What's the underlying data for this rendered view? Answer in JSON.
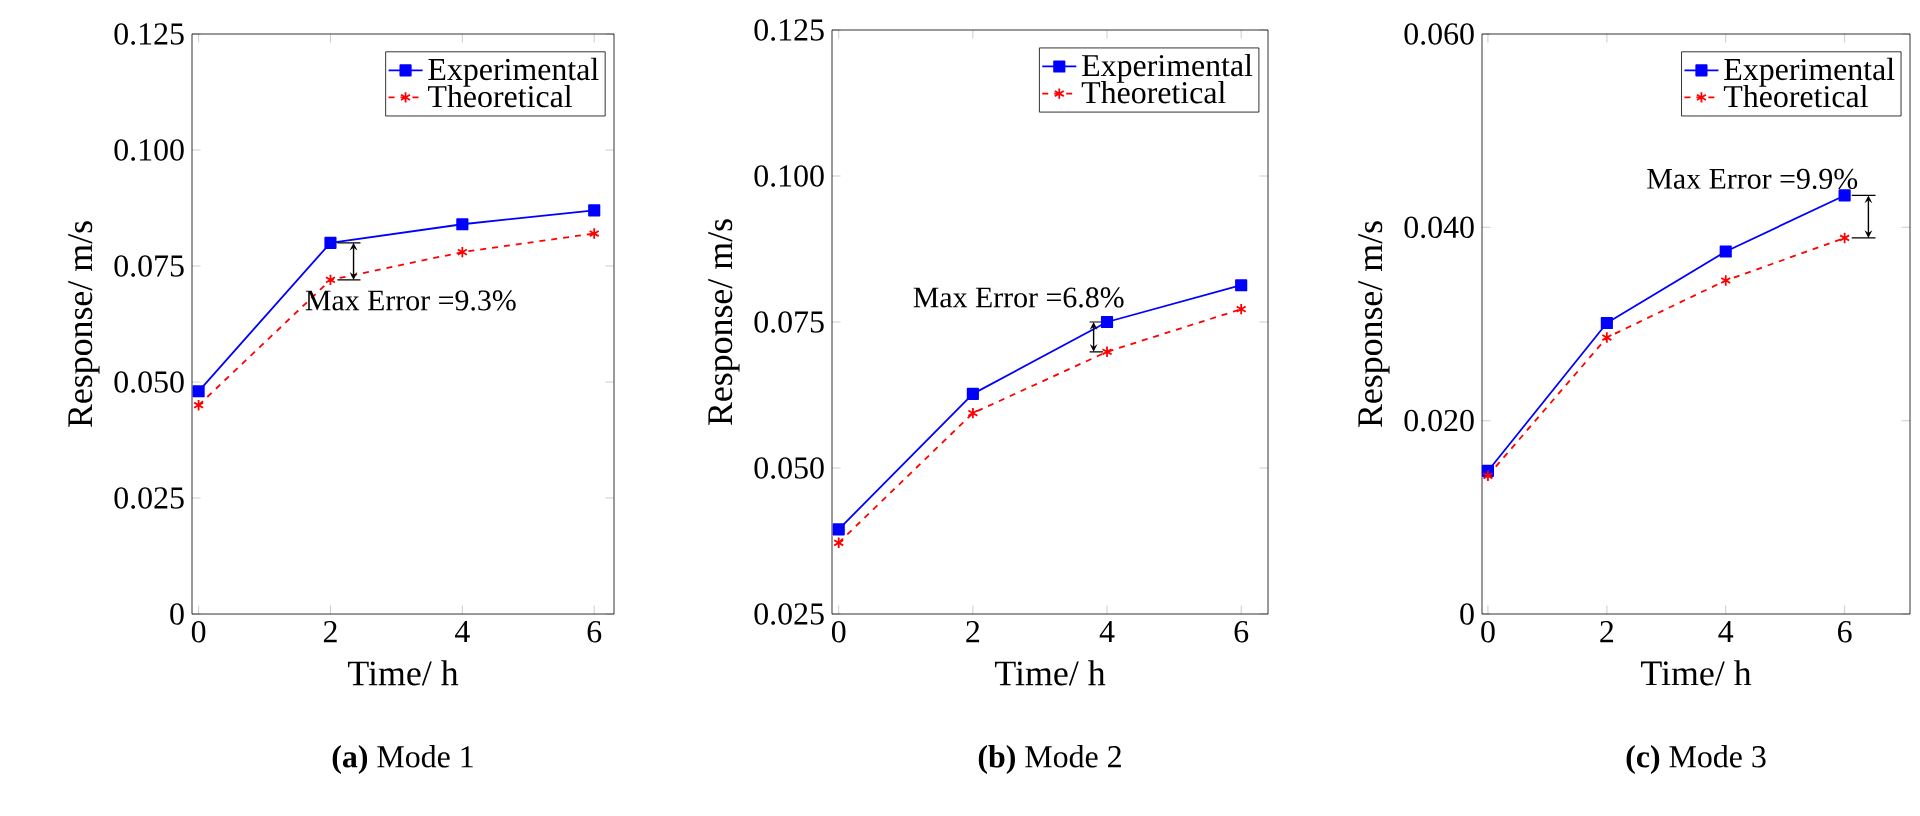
{
  "chart_data": [
    {
      "type": "line",
      "title": "**(a)** Mode 1",
      "xlabel": "Time/ h",
      "ylabel": "Response/ m/s",
      "x": [
        0,
        2,
        4,
        6
      ],
      "xlim": [
        -0.1,
        6.3
      ],
      "xticks": [
        0,
        2,
        4,
        6
      ],
      "ylim": [
        0,
        0.125
      ],
      "yticks": [
        0,
        0.025,
        {
          "value": 0.05,
          "label": "0.050"
        },
        0.075,
        {
          "value": 0.1,
          "label": "0.100"
        },
        0.125
      ],
      "legend": "top right",
      "series": [
        {
          "name": "Experimental",
          "color": "#0000ff",
          "marker": "square",
          "line_style": "solid",
          "values": [
            0.048,
            0.08,
            0.084,
            0.087
          ]
        },
        {
          "name": "Theoretical",
          "color": "#ff0000",
          "marker": "cross",
          "line_style": "dashed",
          "values": [
            0.045,
            0.072,
            0.078,
            0.082
          ]
        }
      ],
      "annotations": [
        {
          "text": "Max Error =9.3%",
          "x": 2,
          "y": 0.08
        }
      ]
    },
    {
      "type": "line",
      "title": "**(b)** Mode 2",
      "xlabel": "Time/ h",
      "ylabel": "Response/ m/s",
      "x": [
        0,
        2,
        4,
        6
      ],
      "xlim": [
        -0.1,
        6.4
      ],
      "xticks": [
        0,
        2,
        4,
        6
      ],
      "ylim": [
        0.025,
        0.125
      ],
      "yticks": [
        0.025,
        {
          "value": 0.05,
          "label": "0.050"
        },
        0.075,
        {
          "value": 0.1,
          "label": "0.100"
        },
        0.125
      ],
      "legend": "top right",
      "series": [
        {
          "name": "Experimental",
          "color": "#0000ff",
          "marker": "square",
          "line_style": "solid",
          "values": [
            0.0395,
            0.0627,
            0.075,
            0.0813
          ]
        },
        {
          "name": "Theoretical",
          "color": "#ff0000",
          "marker": "cross",
          "line_style": "dashed",
          "values": [
            0.0372,
            0.0594,
            0.0699,
            0.0772
          ]
        }
      ],
      "annotations": [
        {
          "text": "Max Error =6.8%",
          "x": 4,
          "y": 0.075
        }
      ]
    },
    {
      "type": "line",
      "title": "**(c)** Mode 3",
      "xlabel": "Time/ h",
      "ylabel": "Response/ m/s",
      "x": [
        0,
        2,
        4,
        6
      ],
      "xlim": [
        -0.1,
        7.1
      ],
      "xticks": [
        0,
        2,
        4,
        6
      ],
      "ylim": [
        0,
        0.06
      ],
      "yticks": [
        0,
        {
          "value": 0.02,
          "label": "0.020"
        },
        {
          "value": 0.04,
          "label": "0.040"
        },
        {
          "value": 0.06,
          "label": "0.060"
        }
      ],
      "legend": "top right",
      "series": [
        {
          "name": "Experimental",
          "color": "#0000ff",
          "marker": "square",
          "line_style": "solid",
          "values": [
            0.0148,
            0.0301,
            0.0375,
            0.0433
          ]
        },
        {
          "name": "Theoretical",
          "color": "#ff0000",
          "marker": "cross",
          "line_style": "dashed",
          "values": [
            0.0143,
            0.0286,
            0.0345,
            0.0389
          ]
        }
      ],
      "annotations": [
        {
          "text": "Max Error =9.9%",
          "x": 6,
          "y": 0.0433
        }
      ]
    }
  ]
}
